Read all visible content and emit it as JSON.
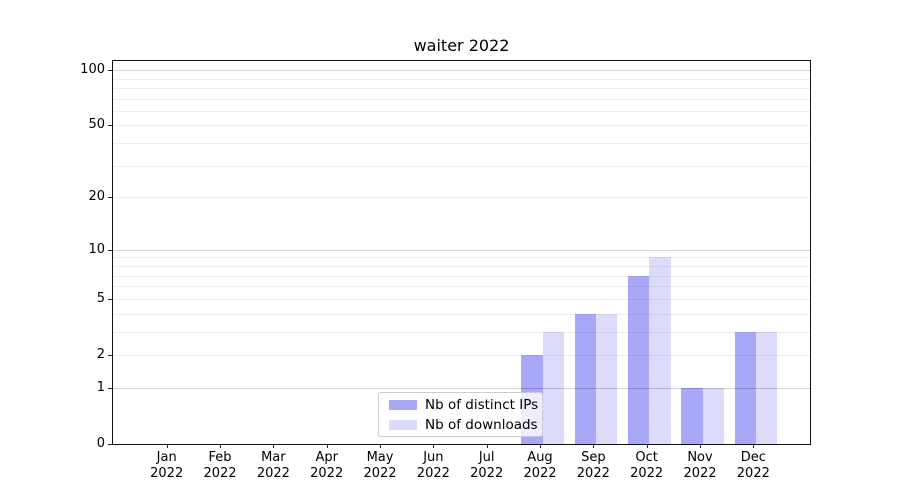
{
  "chart_data": {
    "type": "bar",
    "title": "waiter 2022",
    "categories": [
      "Jan 2022",
      "Feb 2022",
      "Mar 2022",
      "Apr 2022",
      "May 2022",
      "Jun 2022",
      "Jul 2022",
      "Aug 2022",
      "Sep 2022",
      "Oct 2022",
      "Nov 2022",
      "Dec 2022"
    ],
    "series": [
      {
        "name": "Nb of distinct IPs",
        "color": "#a9a7f8",
        "values": [
          0,
          0,
          0,
          0,
          0,
          0,
          0,
          2,
          4,
          7,
          1,
          3
        ]
      },
      {
        "name": "Nb of downloads",
        "color": "#dcdbfa",
        "values": [
          0,
          0,
          0,
          0,
          0,
          0,
          0,
          3,
          4,
          9,
          1,
          3
        ]
      }
    ],
    "y_axis": {
      "scale": "log1p",
      "labeled_ticks": [
        0,
        1,
        2,
        5,
        10,
        20,
        50,
        100
      ],
      "major_gridlines": [
        1,
        10,
        100
      ],
      "minor_gridlines": [
        2,
        3,
        4,
        5,
        6,
        7,
        8,
        9,
        20,
        30,
        40,
        50,
        60,
        70,
        80,
        90
      ],
      "max": 112
    },
    "xlabel": "",
    "ylabel": "",
    "grid": true,
    "legend_position": "lower center"
  },
  "colors": {
    "major_grid": "rgba(0,0,0,0.18)",
    "minor_grid": "rgba(0,0,0,0.07)",
    "spine": "#111111",
    "text": "#000000"
  }
}
